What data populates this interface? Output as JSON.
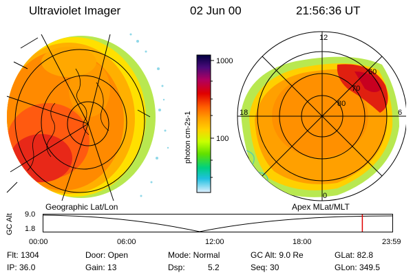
{
  "header": {
    "instrument": "Ultraviolet Imager",
    "date": "02 Jun 00",
    "time": "21:56:36 UT"
  },
  "left_panel": {
    "caption": "Geographic Lat/Lon"
  },
  "right_panel": {
    "caption": "Apex MLat/MLT",
    "mlt_labels": [
      "12",
      "18",
      "6",
      "0"
    ],
    "mlat_labels": [
      "60",
      "70",
      "80"
    ]
  },
  "colorbar": {
    "ticks": [
      "1000",
      "100"
    ],
    "unit": "photon cm-2s-1",
    "colors": [
      "#000040",
      "#4a0a7a",
      "#b00060",
      "#e00000",
      "#ff6000",
      "#ffa000",
      "#ffd000",
      "#c8ff00",
      "#60e000",
      "#00d080",
      "#20c0e0",
      "#e0f0ff"
    ]
  },
  "altitude_plot": {
    "ylabel": "GC Alt",
    "ymax_label": "9.0",
    "ymin_label": "1.8",
    "x_ticks": [
      "00:00",
      "06:00",
      "12:00",
      "18:00",
      "23:59"
    ],
    "current_time_fraction": 0.914,
    "marker_color": "#e00000"
  },
  "info": {
    "flt": "Flt: 1304",
    "ip": "IP: 36.0",
    "door": "Door: Open",
    "gain": "Gain: 13",
    "mode": "Mode: Normal",
    "dsp_label": "Dsp:",
    "dsp_value": "5.2",
    "gc_alt": "GC Alt: 9.0 Re",
    "seq": "Seq: 30",
    "glat": "GLat: 82.8",
    "glon": "GLon: 349.5"
  }
}
